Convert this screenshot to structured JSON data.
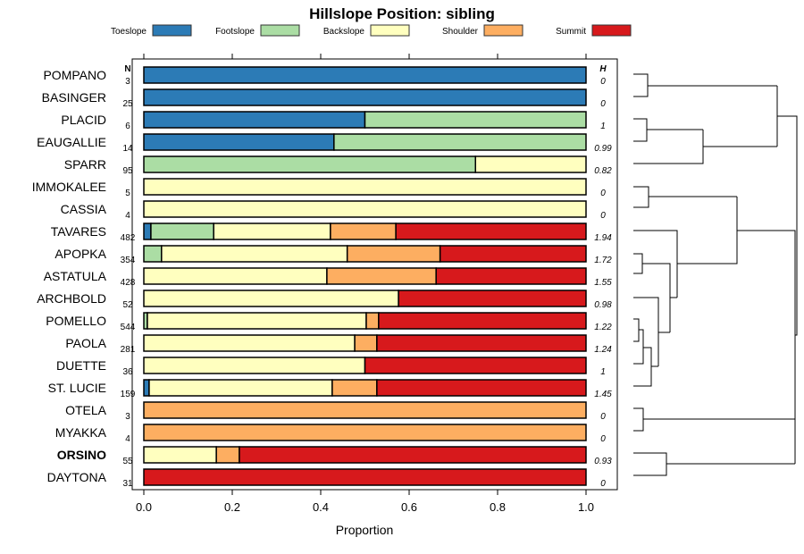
{
  "chart_data": {
    "type": "bar",
    "orientation": "horizontal-stacked",
    "title": "Hillslope Position: sibling",
    "xlabel": "Proportion",
    "xlim": [
      0,
      1
    ],
    "xticks": [
      "0.0",
      "0.2",
      "0.4",
      "0.6",
      "0.8",
      "1.0"
    ],
    "n_header": "N",
    "h_header": "H",
    "legend_position": "top",
    "series": [
      {
        "name": "Toeslope",
        "color": "#2C7BB6"
      },
      {
        "name": "Footslope",
        "color": "#ABDDA4"
      },
      {
        "name": "Backslope",
        "color": "#FFFFBF"
      },
      {
        "name": "Shoulder",
        "color": "#FDAE61"
      },
      {
        "name": "Summit",
        "color": "#D7191C"
      }
    ],
    "rows": [
      {
        "name": "POMPANO",
        "n": "3",
        "h": "0",
        "bold": false,
        "values": [
          1,
          0,
          0,
          0,
          0
        ]
      },
      {
        "name": "BASINGER",
        "n": "25",
        "h": "0",
        "bold": false,
        "values": [
          1,
          0,
          0,
          0,
          0
        ]
      },
      {
        "name": "PLACID",
        "n": "6",
        "h": "1",
        "bold": false,
        "values": [
          0.5,
          0.5,
          0,
          0,
          0
        ]
      },
      {
        "name": "EAUGALLIE",
        "n": "14",
        "h": "0.99",
        "bold": false,
        "values": [
          0.43,
          0.57,
          0,
          0,
          0
        ]
      },
      {
        "name": "SPARR",
        "n": "95",
        "h": "0.82",
        "bold": false,
        "values": [
          0,
          0.75,
          0.25,
          0,
          0
        ]
      },
      {
        "name": "IMMOKALEE",
        "n": "5",
        "h": "0",
        "bold": false,
        "values": [
          0,
          0,
          1,
          0,
          0
        ]
      },
      {
        "name": "CASSIA",
        "n": "4",
        "h": "0",
        "bold": false,
        "values": [
          0,
          0,
          1,
          0,
          0
        ]
      },
      {
        "name": "TAVARES",
        "n": "482",
        "h": "1.94",
        "bold": false,
        "values": [
          0.016,
          0.142,
          0.264,
          0.148,
          0.43
        ]
      },
      {
        "name": "APOPKA",
        "n": "354",
        "h": "1.72",
        "bold": false,
        "values": [
          0,
          0.04,
          0.42,
          0.21,
          0.33
        ]
      },
      {
        "name": "ASTATULA",
        "n": "428",
        "h": "1.55",
        "bold": false,
        "values": [
          0,
          0,
          0.414,
          0.247,
          0.339
        ]
      },
      {
        "name": "ARCHBOLD",
        "n": "52",
        "h": "0.98",
        "bold": false,
        "values": [
          0,
          0,
          0.576,
          0,
          0.424
        ]
      },
      {
        "name": "POMELLO",
        "n": "544",
        "h": "1.22",
        "bold": false,
        "values": [
          0,
          0.008,
          0.495,
          0.028,
          0.469
        ]
      },
      {
        "name": "PAOLA",
        "n": "281",
        "h": "1.24",
        "bold": false,
        "values": [
          0,
          0,
          0.477,
          0.05,
          0.473
        ]
      },
      {
        "name": "DUETTE",
        "n": "36",
        "h": "1",
        "bold": false,
        "values": [
          0,
          0,
          0.5,
          0,
          0.5
        ]
      },
      {
        "name": "ST. LUCIE",
        "n": "159",
        "h": "1.45",
        "bold": false,
        "values": [
          0.012,
          0,
          0.414,
          0.101,
          0.473
        ]
      },
      {
        "name": "OTELA",
        "n": "3",
        "h": "0",
        "bold": false,
        "values": [
          0,
          0,
          0,
          1,
          0
        ]
      },
      {
        "name": "MYAKKA",
        "n": "4",
        "h": "0",
        "bold": false,
        "values": [
          0,
          0,
          0,
          1,
          0
        ]
      },
      {
        "name": "ORSINO",
        "n": "55",
        "h": "0.93",
        "bold": true,
        "values": [
          0,
          0,
          0.164,
          0.052,
          0.784
        ]
      },
      {
        "name": "DAYTONA",
        "n": "31",
        "h": "0",
        "bold": false,
        "values": [
          0,
          0,
          0,
          0,
          1
        ]
      }
    ]
  }
}
